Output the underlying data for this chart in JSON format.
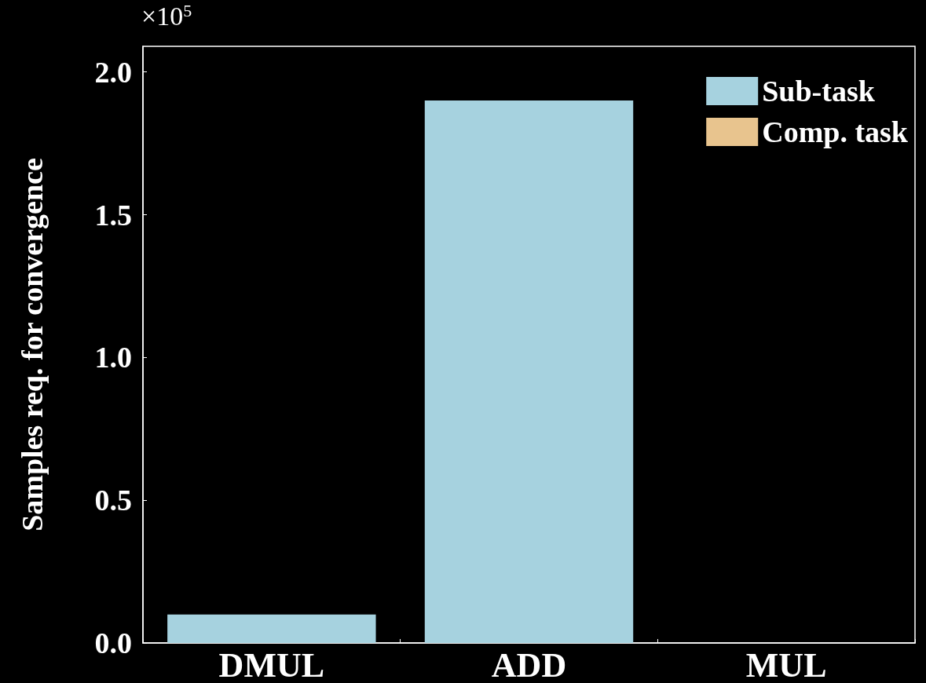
{
  "chart_data": {
    "type": "bar",
    "ylabel": "Samples req. for convergence",
    "annotations": [
      "×10$^{5}$"
    ],
    "categories": [
      "DMUL",
      "ADD",
      "MUL"
    ],
    "stacked": true,
    "series": [
      {
        "name": "Sub-task",
        "color": "#a6d2df",
        "values": [
          0.1,
          1.9,
          null
        ]
      },
      {
        "name": "Comp. task",
        "color": "#e8c48e",
        "values": [
          null,
          null,
          0
        ]
      }
    ],
    "ylim": [
      0,
      2.09
    ],
    "yticks": [
      {
        "value": 0,
        "label": "0.0"
      },
      {
        "value": 0.5,
        "label": "0.5"
      },
      {
        "value": 1,
        "label": "1.0"
      },
      {
        "value": 1.5,
        "label": "1.5"
      },
      {
        "value": 2,
        "label": "2.0"
      }
    ],
    "legend": "top right",
    "grid": false
  }
}
